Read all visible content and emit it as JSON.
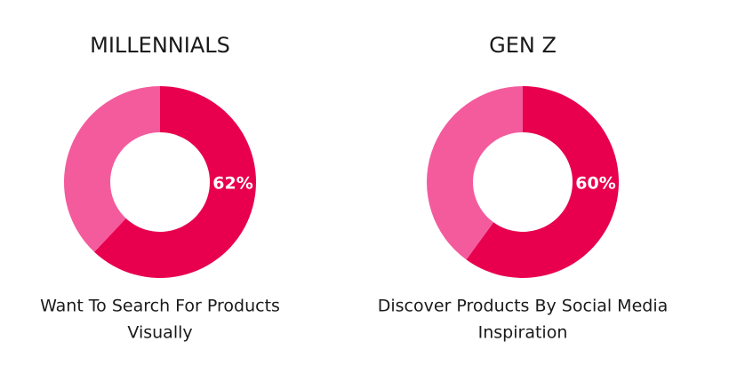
{
  "chart_data": [
    {
      "type": "donut",
      "title": "MILLENNIALS",
      "values": [
        62,
        38
      ],
      "value_labels": [
        "62%",
        null
      ],
      "colors": [
        "#e8004f",
        "#f45b9d"
      ],
      "caption": [
        "Want To Search For Products",
        "Visually"
      ]
    },
    {
      "type": "donut",
      "title": "GEN Z",
      "values": [
        60,
        40
      ],
      "value_labels": [
        "60%",
        null
      ],
      "colors": [
        "#e8004f",
        "#f45b9d"
      ],
      "caption": [
        "Discover Products By Social Media",
        "Inspiration"
      ]
    }
  ]
}
